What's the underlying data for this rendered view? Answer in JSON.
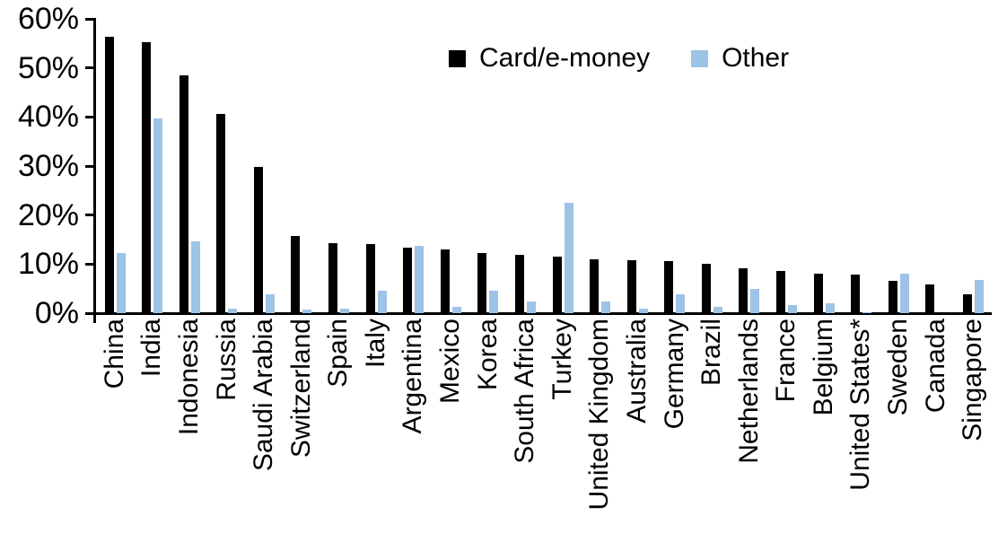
{
  "legend": [
    {
      "label": "Card/e-money",
      "color": "#000000"
    },
    {
      "label": "Other",
      "color": "#9DC3E6"
    }
  ],
  "y_axis": {
    "tick_labels": [
      "60%",
      "50%",
      "40%",
      "30%",
      "20%",
      "10%",
      "0%"
    ],
    "min": 0,
    "max": 60,
    "step": 10
  },
  "chart_data": {
    "type": "bar",
    "title": "",
    "xlabel": "",
    "ylabel": "",
    "ylim": [
      0,
      60
    ],
    "y_tick_format": "percent",
    "grid": false,
    "legend_position": "top-center",
    "categories": [
      "China",
      "India",
      "Indonesia",
      "Russia",
      "Saudi Arabia",
      "Switzerland",
      "Spain",
      "Italy",
      "Argentina",
      "Mexico",
      "Korea",
      "South Africa",
      "Turkey",
      "United Kingdom",
      "Australia",
      "Germany",
      "Brazil",
      "Netherlands",
      "France",
      "Belgium",
      "United States*",
      "Sweden",
      "Canada",
      "Singapore"
    ],
    "series": [
      {
        "name": "Card/e-money",
        "color": "#000000",
        "values": [
          56.3,
          55.2,
          48.4,
          40.6,
          29.9,
          15.7,
          14.2,
          14.1,
          13.4,
          12.9,
          12.2,
          11.8,
          11.6,
          11.0,
          10.8,
          10.6,
          10.0,
          9.2,
          8.6,
          8.1,
          7.9,
          6.5,
          5.9,
          3.8
        ]
      },
      {
        "name": "Other",
        "color": "#9DC3E6",
        "values": [
          12.3,
          39.7,
          14.6,
          1.0,
          3.9,
          0.8,
          0.9,
          4.5,
          13.7,
          1.3,
          4.6,
          2.4,
          22.5,
          2.3,
          1.0,
          3.9,
          1.2,
          4.9,
          1.6,
          2.1,
          0.2,
          8.1,
          0.0,
          6.7
        ]
      }
    ]
  }
}
